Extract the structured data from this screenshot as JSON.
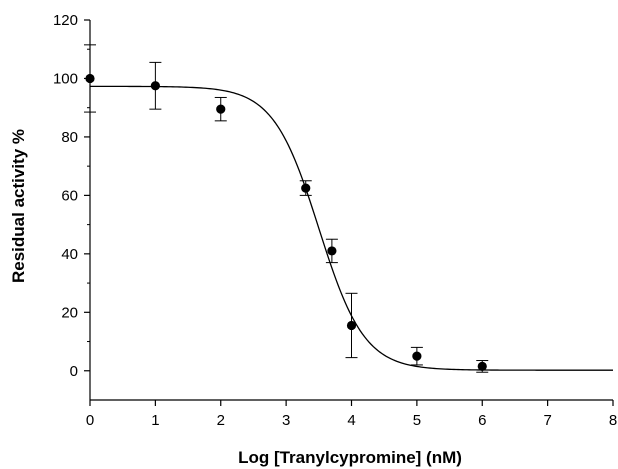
{
  "chart_data": {
    "type": "scatter",
    "title": "",
    "xlabel": "Log [Tranylcypromine] (nM)",
    "ylabel": "Residual activity %",
    "xlim": [
      0,
      8
    ],
    "ylim": [
      -10,
      120
    ],
    "xticks": [
      0,
      1,
      2,
      3,
      4,
      5,
      6,
      7,
      8
    ],
    "yticks": [
      0,
      20,
      40,
      60,
      80,
      100,
      120
    ],
    "xtick_labels": [
      "0",
      "1",
      "2",
      "3",
      "4",
      "5",
      "6",
      "7",
      "8"
    ],
    "ytick_labels": [
      "0",
      "20",
      "40",
      "60",
      "80",
      "100",
      "120"
    ],
    "grid": false,
    "legend": "none",
    "marker_color": "#000000",
    "points": [
      {
        "x": 0.0,
        "y": 100.0,
        "err": 11.5
      },
      {
        "x": 1.0,
        "y": 97.5,
        "err": 8.0
      },
      {
        "x": 2.0,
        "y": 89.5,
        "err": 4.0
      },
      {
        "x": 3.3,
        "y": 62.5,
        "err": 2.5
      },
      {
        "x": 3.7,
        "y": 41.0,
        "err": 4.0
      },
      {
        "x": 4.0,
        "y": 15.5,
        "err": 11.0
      },
      {
        "x": 5.0,
        "y": 5.0,
        "err": 3.0
      },
      {
        "x": 6.0,
        "y": 1.5,
        "err": 2.0
      }
    ],
    "fit_curve": {
      "model": "four-parameter logistic",
      "top": 97.3,
      "bottom": 0.2,
      "log_ic50": 3.5,
      "hill_slope": 1.25
    }
  }
}
